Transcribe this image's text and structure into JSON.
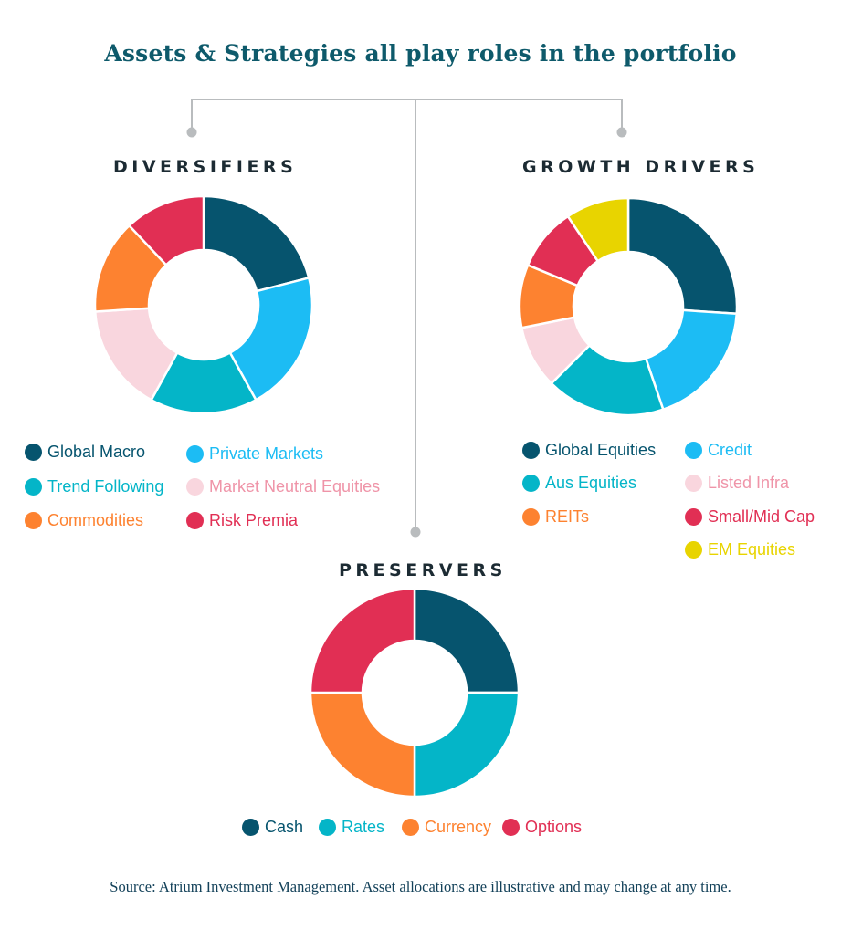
{
  "title": "Assets & Strategies all play roles in the portfolio",
  "source": "Source: Atrium Investment Management. Asset allocations are illustrative and may change at any time.",
  "chart_data": [
    {
      "type": "pie",
      "title": "DIVERSIFIERS",
      "categories": [
        "Global Macro",
        "Private Markets",
        "Trend Following",
        "Market Neutral Equities",
        "Commodities",
        "Risk Premia"
      ],
      "values": [
        21,
        21,
        16,
        16,
        14,
        12
      ],
      "colors": [
        "#06546e",
        "#1cbcf4",
        "#04b5c8",
        "#f9d6de",
        "#fd8230",
        "#e12f54"
      ],
      "label_colors": [
        "#06546e",
        "#1cbcf4",
        "#04b5c8",
        "#ef94a8",
        "#fd8230",
        "#e12f54"
      ],
      "legend_position": "bottom"
    },
    {
      "type": "pie",
      "title": "GROWTH DRIVERS",
      "categories": [
        "Global Equities",
        "Credit",
        "Aus Equities",
        "Listed Infra",
        "REITs",
        "Small/Mid Cap",
        "EM Equities"
      ],
      "values": [
        25,
        18,
        17,
        9,
        9,
        9,
        9
      ],
      "colors": [
        "#06546e",
        "#1cbcf4",
        "#04b5c8",
        "#f9d6de",
        "#fd8230",
        "#e12f54",
        "#e8d400"
      ],
      "label_colors": [
        "#06546e",
        "#1cbcf4",
        "#04b5c8",
        "#ef94a8",
        "#fd8230",
        "#e12f54",
        "#e8d400"
      ],
      "legend_position": "bottom"
    },
    {
      "type": "pie",
      "title": "PRESERVERS",
      "categories": [
        "Cash",
        "Rates",
        "Currency",
        "Options"
      ],
      "values": [
        25,
        25,
        25,
        25
      ],
      "colors": [
        "#06546e",
        "#04b5c8",
        "#fd8230",
        "#e12f54"
      ],
      "label_colors": [
        "#06546e",
        "#04b5c8",
        "#fd8230",
        "#e12f54"
      ],
      "legend_position": "bottom"
    }
  ]
}
